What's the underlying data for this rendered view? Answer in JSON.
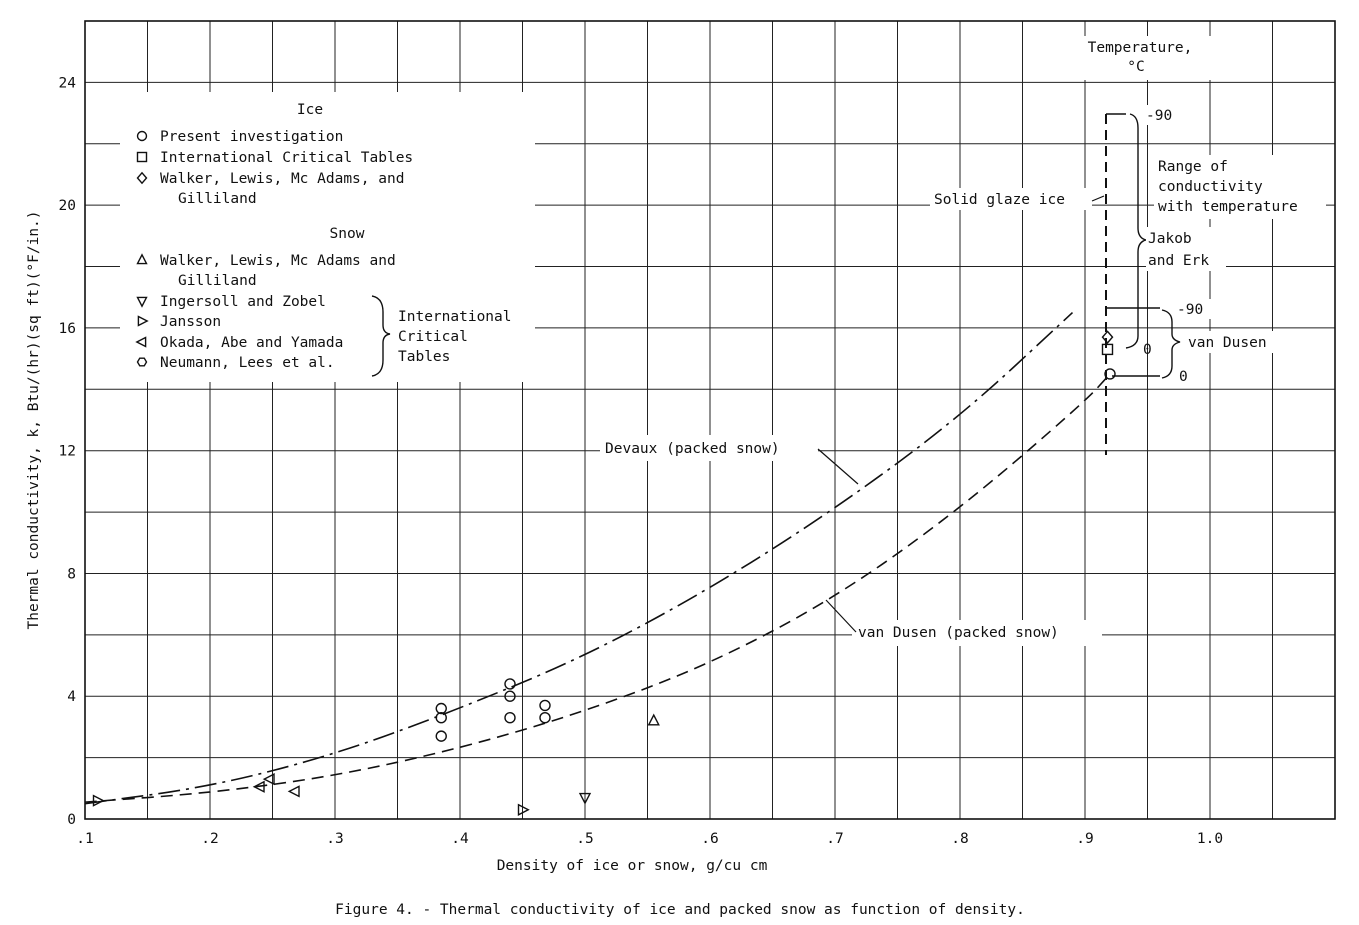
{
  "chart_data": {
    "type": "scatter",
    "title": "Figure 4. - Thermal conductivity of ice and packed snow as function of density.",
    "xlabel": "Density of ice or snow, g/cu cm",
    "ylabel": "Thermal conductivity, k, Btu/(hr)(sq ft)(°F/in.)",
    "xlim": [
      0.1,
      1.1
    ],
    "ylim": [
      0,
      24
    ],
    "x_ticks": [
      ".1",
      ".2",
      ".3",
      ".4",
      ".5",
      ".6",
      ".7",
      ".8",
      ".9",
      "1.0"
    ],
    "y_ticks": [
      "0",
      "4",
      "8",
      "12",
      "16",
      "20",
      "24"
    ],
    "grid": true,
    "legend": {
      "ice_heading": "Ice",
      "snow_heading": "Snow",
      "ice_entries": [
        {
          "marker": "circle",
          "line1": "Present investigation",
          "line2": ""
        },
        {
          "marker": "square",
          "line1": "International Critical Tables",
          "line2": ""
        },
        {
          "marker": "diamond",
          "line1": "Walker, Lewis, Mc Adams, and",
          "line2": "Gilliland"
        }
      ],
      "snow_entries": [
        {
          "marker": "triangle-up",
          "line1": "Walker, Lewis, Mc Adams and",
          "line2": "Gilliland"
        },
        {
          "marker": "triangle-down",
          "line1": "Ingersoll and Zobel",
          "line2": ""
        },
        {
          "marker": "triangle-right",
          "line1": "Jansson",
          "line2": ""
        },
        {
          "marker": "triangle-left",
          "line1": "Okada, Abe and Yamada",
          "line2": ""
        },
        {
          "marker": "hexagon",
          "line1": "Neumann, Lees et al.",
          "line2": ""
        }
      ],
      "brace_label": [
        "International",
        "Critical",
        "Tables"
      ]
    },
    "series": [
      {
        "name": "Present investigation",
        "marker": "circle",
        "points": [
          [
            0.385,
            3.6
          ],
          [
            0.385,
            3.3
          ],
          [
            0.385,
            2.7
          ],
          [
            0.44,
            4.4
          ],
          [
            0.44,
            4.0
          ],
          [
            0.44,
            3.3
          ],
          [
            0.468,
            3.7
          ],
          [
            0.468,
            3.3
          ],
          [
            0.92,
            14.5
          ]
        ]
      },
      {
        "name": "International Critical Tables",
        "marker": "square",
        "points": [
          [
            0.918,
            15.3
          ]
        ]
      },
      {
        "name": "Walker, Lewis, Mc Adams, and Gilliland",
        "marker": "diamond",
        "points": [
          [
            0.918,
            15.7
          ]
        ]
      },
      {
        "name": "Walker, Lewis, Mc Adams and Gilliland",
        "marker": "triangle-up",
        "points": [
          [
            0.555,
            3.2
          ]
        ]
      },
      {
        "name": "Ingersoll and Zobel",
        "marker": "triangle-down",
        "points": [
          [
            0.5,
            0.7
          ]
        ]
      },
      {
        "name": "Jansson",
        "marker": "triangle-right",
        "points": [
          [
            0.11,
            0.6
          ],
          [
            0.45,
            0.3
          ]
        ]
      },
      {
        "name": "Okada, Abe and Yamada",
        "marker": "triangle-left",
        "points": [
          [
            0.24,
            1.05
          ],
          [
            0.248,
            1.3
          ],
          [
            0.268,
            0.9
          ]
        ]
      },
      {
        "name": "Neumann, Lees et al.",
        "marker": "hexagon",
        "points": []
      }
    ],
    "curves": [
      {
        "name": "Devaux (packed snow)",
        "style": "dash-dot",
        "points": [
          [
            0.1,
            0.5
          ],
          [
            0.2,
            1.05
          ],
          [
            0.3,
            2.1
          ],
          [
            0.4,
            3.6
          ],
          [
            0.5,
            5.3
          ],
          [
            0.6,
            7.5
          ],
          [
            0.7,
            10.1
          ],
          [
            0.8,
            13.1
          ],
          [
            0.89,
            16.5
          ]
        ]
      },
      {
        "name": "van Dusen (packed snow)",
        "style": "dash",
        "points": [
          [
            0.1,
            0.55
          ],
          [
            0.2,
            0.85
          ],
          [
            0.3,
            1.4
          ],
          [
            0.4,
            2.3
          ],
          [
            0.5,
            3.5
          ],
          [
            0.6,
            5.05
          ],
          [
            0.7,
            7.2
          ],
          [
            0.8,
            10.1
          ],
          [
            0.9,
            13.6
          ],
          [
            0.92,
            14.5
          ]
        ]
      }
    ],
    "annotations": {
      "temperature_header": [
        "Temperature,",
        "°C"
      ],
      "solid_glaze_ice": "Solid glaze ice",
      "range_text": [
        "Range of",
        "conductivity",
        "with temperature"
      ],
      "jakob_erk": [
        "Jakob",
        "and Erk"
      ],
      "van_dusen": "van Dusen",
      "temp_values": {
        "jakob_low": "-90",
        "jakob_high": "0",
        "vandusen_low": "-90",
        "vandusen_high": "0"
      },
      "devaux_label": "Devaux (packed snow)",
      "vandusen_label": "van Dusen (packed snow)"
    }
  }
}
